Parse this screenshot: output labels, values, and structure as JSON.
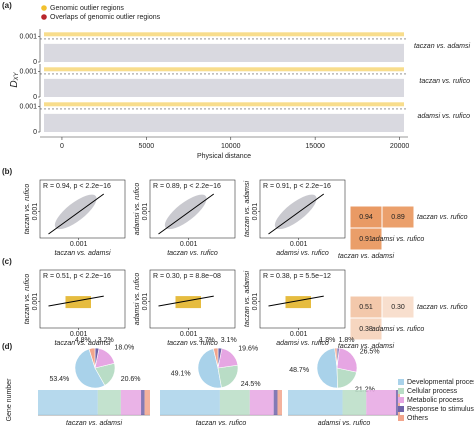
{
  "figure": {
    "a": {
      "panel_label": "(a)",
      "legend": [
        {
          "name": "Genomic outlier regions",
          "color": "#f2c12e"
        },
        {
          "name": "Overlaps of genomic outlier regions",
          "color": "#b8262b"
        }
      ],
      "y_label": "D",
      "y_label_sub": "XY",
      "x_label": "Physical distance",
      "xlim": [
        -1300,
        20500
      ],
      "xticks": [
        0,
        5000,
        10000,
        15000,
        20000
      ],
      "tracks": [
        {
          "name": "taczan vs. adamsi",
          "ylim": [
            0,
            0.0013
          ],
          "yticks": [
            0,
            0.001
          ]
        },
        {
          "name": "taczan vs. rufico",
          "ylim": [
            0,
            0.0013
          ],
          "yticks": [
            0,
            0.001
          ]
        },
        {
          "name": "adamsi vs. rufico",
          "ylim": [
            0,
            0.0013
          ],
          "yticks": [
            0,
            0.001
          ]
        }
      ]
    },
    "b": {
      "panel_label": "(b)",
      "panels": [
        {
          "stat": "R = 0.94, p < 2.2e−16",
          "x_label": "taczan vs. adamsi",
          "y_label": "taczan vs. rufico",
          "xlim": [
            0,
            0.0022
          ],
          "xticks": [
            0.001
          ],
          "ylim": [
            0,
            0.0022
          ],
          "yticks": [
            0.001
          ]
        },
        {
          "stat": "R = 0.89, p < 2.2e−16",
          "x_label": "taczan vs. rufico",
          "y_label": "adamsi vs. rufico",
          "xlim": [
            0,
            0.0022
          ],
          "xticks": [
            0.001
          ],
          "ylim": [
            0,
            0.0022
          ],
          "yticks": [
            0.001
          ]
        },
        {
          "stat": "R = 0.91, p < 2.2e−16",
          "x_label": "adamsi vs. rufico",
          "y_label": "taczan vs. adamsi",
          "xlim": [
            0,
            0.0022
          ],
          "xticks": [
            0.001
          ],
          "ylim": [
            0,
            0.0022
          ],
          "yticks": [
            0.001
          ]
        }
      ],
      "heatmap": {
        "values": [
          0.94,
          0.89,
          0.91
        ],
        "value_labels": [
          "0.94",
          "0.89",
          "0.91"
        ],
        "labels": [
          "taczan vs. rufico",
          "taczan vs. adamsi",
          "adamsi vs. rufico"
        ]
      }
    },
    "c": {
      "panel_label": "(c)",
      "panels": [
        {
          "stat": "R = 0.51, p < 2.2e−16",
          "x_label": "taczan vs. adamsi",
          "y_label": "taczan vs. rufico",
          "xlim": [
            0,
            0.0022
          ],
          "xticks": [
            0.001
          ],
          "ylim": [
            0,
            0.0022
          ],
          "yticks": [
            0.001
          ]
        },
        {
          "stat": "R = 0.30, p = 8.8e−08",
          "x_label": "taczan vs. rufico",
          "y_label": "adamsi vs. rufico",
          "xlim": [
            0,
            0.0022
          ],
          "xticks": [
            0.001
          ],
          "ylim": [
            0,
            0.0022
          ],
          "yticks": [
            0.001
          ]
        },
        {
          "stat": "R = 0.38, p = 5.5e−12",
          "x_label": "adamsi vs. rufico",
          "y_label": "taczan vs. adamsi",
          "xlim": [
            0,
            0.0022
          ],
          "xticks": [
            0.001
          ],
          "ylim": [
            0,
            0.0022
          ],
          "yticks": [
            0.001
          ]
        }
      ],
      "heatmap": {
        "values": [
          0.51,
          0.3,
          0.38
        ],
        "value_labels": [
          "0.51",
          "0.30",
          "0.38"
        ],
        "labels": [
          "taczan vs. rufico",
          "taczan vs. adamsi",
          "adamsi vs. rufico"
        ]
      }
    },
    "d": {
      "panel_label": "(d)",
      "y_label": "Gene number",
      "categories": [
        "Developmental process",
        "Cellular process",
        "Metabolic process",
        "Response to stimulus",
        "Others"
      ],
      "colors": [
        "#a9d2ea",
        "#b9ddc6",
        "#e6a6e3",
        "#6f63a8",
        "#f2a58c"
      ],
      "pies": [
        {
          "name": "taczan vs. adamsi",
          "values": [
            53.4,
            20.6,
            18,
            3.2,
            4.8
          ],
          "value_labels": [
            "53.4%",
            "20.6%",
            "18.0%",
            "3.2%",
            "4.8%"
          ]
        },
        {
          "name": "taczan vs. rufico",
          "values": [
            49.1,
            24.5,
            19.6,
            3.1,
            3.7
          ],
          "value_labels": [
            "49.1%",
            "24.5%",
            "19.6%",
            "3.1%",
            "3.7%"
          ]
        },
        {
          "name": "adamsi vs. rufico",
          "values": [
            48.7,
            21.2,
            26.5,
            1.8,
            1.8
          ],
          "value_labels": [
            "48.7%",
            "21.2%",
            "26.5%",
            "1.8%",
            "1.8%"
          ]
        }
      ]
    }
  }
}
